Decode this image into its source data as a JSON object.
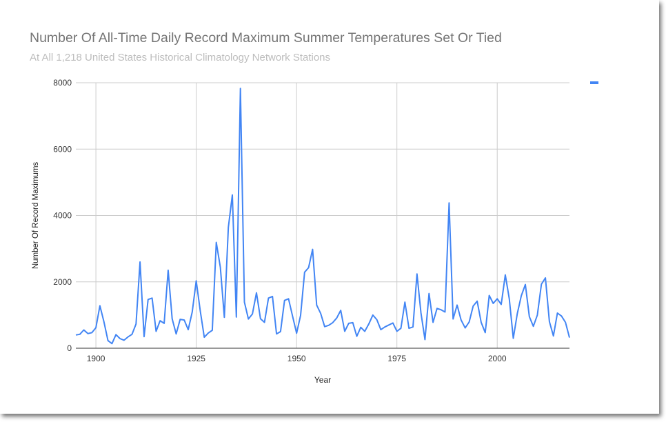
{
  "chart_data": {
    "type": "line",
    "title": "Number Of All-Time Daily Record Maximum Summer Temperatures Set Or Tied",
    "subtitle": "At All 1,218 United States Historical Climatology Network Stations",
    "xlabel": "Year",
    "ylabel": "Number Of Record Maximums",
    "xlim": [
      1895,
      2018
    ],
    "ylim": [
      0,
      8000
    ],
    "x_ticks": [
      1900,
      1925,
      1950,
      1975,
      2000
    ],
    "y_ticks": [
      0,
      2000,
      4000,
      6000,
      8000
    ],
    "grid": true,
    "legend": "top-right",
    "colors": {
      "line": "#4285f4",
      "grid": "#cccccc",
      "axis": "#333333"
    },
    "series": [
      {
        "name": "",
        "x": [
          1895,
          1896,
          1897,
          1898,
          1899,
          1900,
          1901,
          1902,
          1903,
          1904,
          1905,
          1906,
          1907,
          1908,
          1909,
          1910,
          1911,
          1912,
          1913,
          1914,
          1915,
          1916,
          1917,
          1918,
          1919,
          1920,
          1921,
          1922,
          1923,
          1924,
          1925,
          1926,
          1927,
          1928,
          1929,
          1930,
          1931,
          1932,
          1933,
          1934,
          1935,
          1936,
          1937,
          1938,
          1939,
          1940,
          1941,
          1942,
          1943,
          1944,
          1945,
          1946,
          1947,
          1948,
          1949,
          1950,
          1951,
          1952,
          1953,
          1954,
          1955,
          1956,
          1957,
          1958,
          1959,
          1960,
          1961,
          1962,
          1963,
          1964,
          1965,
          1966,
          1967,
          1968,
          1969,
          1970,
          1971,
          1972,
          1973,
          1974,
          1975,
          1976,
          1977,
          1978,
          1979,
          1980,
          1981,
          1982,
          1983,
          1984,
          1985,
          1986,
          1987,
          1988,
          1989,
          1990,
          1991,
          1992,
          1993,
          1994,
          1995,
          1996,
          1997,
          1998,
          1999,
          2000,
          2001,
          2002,
          2003,
          2004,
          2005,
          2006,
          2007,
          2008,
          2009,
          2010,
          2011,
          2012,
          2013,
          2014,
          2015,
          2016,
          2017,
          2018
        ],
        "values": [
          400,
          420,
          550,
          440,
          470,
          620,
          1280,
          800,
          230,
          140,
          410,
          290,
          240,
          340,
          420,
          730,
          2600,
          350,
          1470,
          1510,
          510,
          830,
          750,
          2350,
          890,
          430,
          870,
          850,
          560,
          1090,
          2030,
          1120,
          330,
          460,
          540,
          3190,
          2440,
          930,
          3640,
          4620,
          940,
          7830,
          1390,
          880,
          1030,
          1670,
          890,
          780,
          1510,
          1560,
          430,
          500,
          1440,
          1490,
          970,
          450,
          990,
          2290,
          2430,
          2980,
          1300,
          1050,
          650,
          690,
          770,
          910,
          1140,
          510,
          750,
          770,
          360,
          630,
          510,
          730,
          1000,
          860,
          560,
          640,
          700,
          760,
          510,
          600,
          1390,
          600,
          640,
          2240,
          1060,
          260,
          1650,
          780,
          1200,
          1160,
          1090,
          4380,
          880,
          1300,
          850,
          610,
          790,
          1270,
          1420,
          780,
          470,
          1590,
          1350,
          1490,
          1320,
          2210,
          1490,
          300,
          1040,
          1580,
          1920,
          950,
          660,
          1000,
          1930,
          2120,
          800,
          370,
          1060,
          970,
          780,
          320
        ]
      }
    ]
  }
}
